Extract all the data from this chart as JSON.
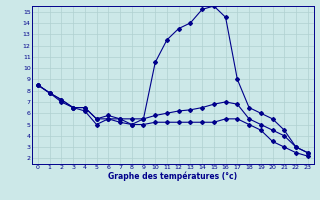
{
  "xlabel": "Graphe des températures (°c)",
  "bg_color": "#cce8e8",
  "line_color": "#00008b",
  "grid_color": "#b0d0d0",
  "xlim": [
    -0.5,
    23.5
  ],
  "ylim": [
    1.5,
    15.5
  ],
  "xticks": [
    0,
    1,
    2,
    3,
    4,
    5,
    6,
    7,
    8,
    9,
    10,
    11,
    12,
    13,
    14,
    15,
    16,
    17,
    18,
    19,
    20,
    21,
    22,
    23
  ],
  "yticks": [
    2,
    3,
    4,
    5,
    6,
    7,
    8,
    9,
    10,
    11,
    12,
    13,
    14,
    15
  ],
  "series": [
    {
      "x": [
        0,
        1,
        2,
        3,
        4,
        5,
        6,
        7,
        8,
        9,
        10,
        11,
        12,
        13,
        14,
        15,
        16,
        17,
        18,
        19,
        20,
        21,
        22,
        23
      ],
      "y": [
        8.5,
        7.8,
        7.2,
        6.5,
        6.2,
        5.0,
        5.5,
        5.5,
        5.0,
        5.5,
        10.5,
        12.5,
        13.5,
        14.0,
        15.2,
        15.5,
        14.5,
        9.0,
        6.5,
        6.0,
        5.5,
        4.5,
        3.0,
        2.5
      ]
    },
    {
      "x": [
        0,
        1,
        2,
        3,
        4,
        5,
        6,
        7,
        8,
        9,
        10,
        11,
        12,
        13,
        14,
        15,
        16,
        17,
        18,
        19,
        20,
        21,
        22,
        23
      ],
      "y": [
        8.5,
        7.8,
        7.2,
        6.5,
        6.5,
        5.5,
        5.8,
        5.5,
        5.5,
        5.5,
        5.8,
        6.0,
        6.2,
        6.3,
        6.5,
        6.8,
        7.0,
        6.8,
        5.5,
        5.0,
        4.5,
        4.0,
        3.0,
        2.5
      ]
    },
    {
      "x": [
        0,
        1,
        2,
        3,
        4,
        5,
        6,
        7,
        8,
        9,
        10,
        11,
        12,
        13,
        14,
        15,
        16,
        17,
        18,
        19,
        20,
        21,
        22,
        23
      ],
      "y": [
        8.5,
        7.8,
        7.0,
        6.5,
        6.5,
        5.5,
        5.5,
        5.2,
        5.0,
        5.0,
        5.2,
        5.2,
        5.2,
        5.2,
        5.2,
        5.2,
        5.5,
        5.5,
        5.0,
        4.5,
        3.5,
        3.0,
        2.5,
        2.2
      ]
    }
  ]
}
